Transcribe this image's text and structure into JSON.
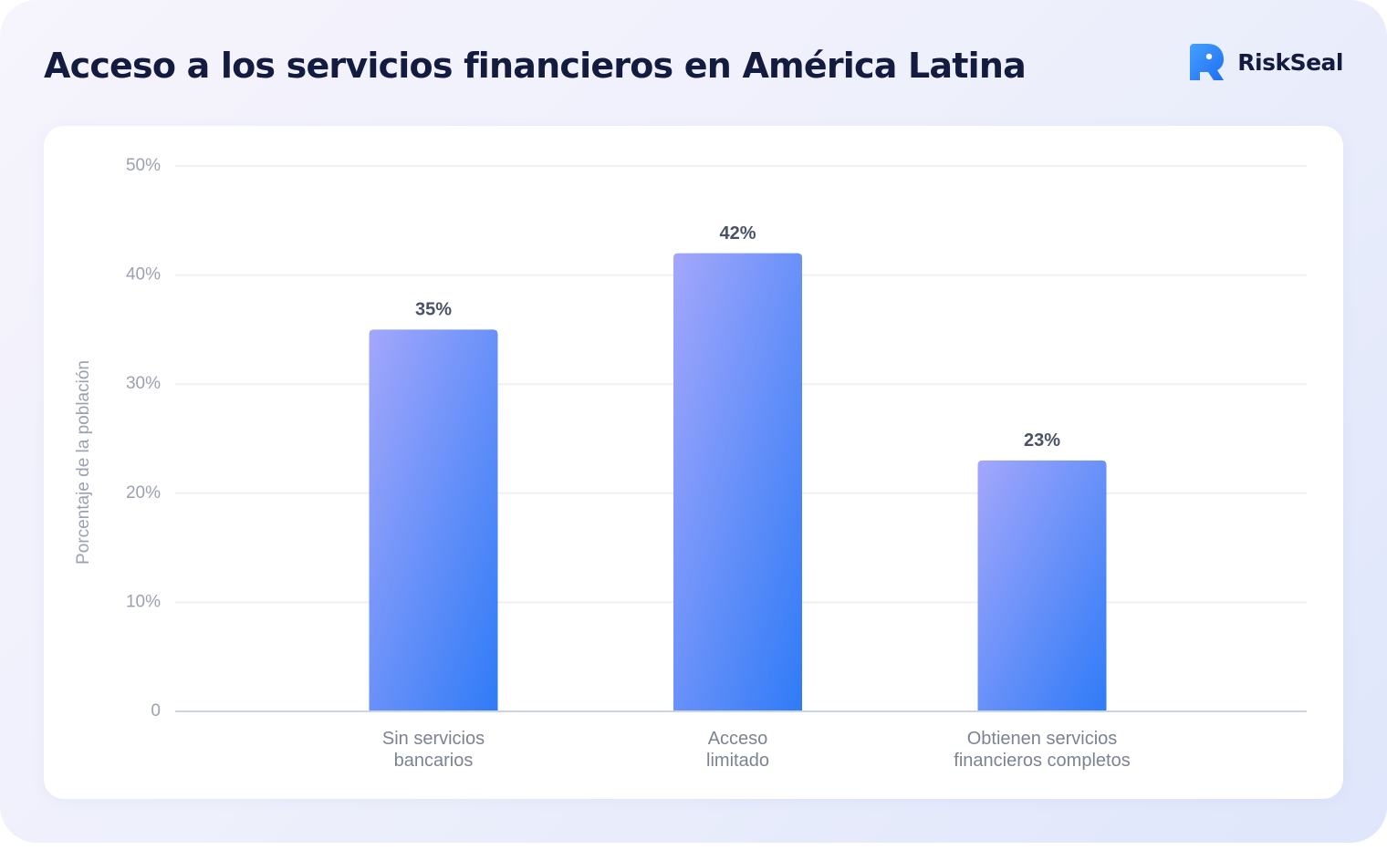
{
  "header": {
    "title": "Acceso a los servicios financieros en América Latina",
    "brand_name": "RiskSeal",
    "brand_icon": "riskseal-logo-icon",
    "brand_color": "#2f7cf6"
  },
  "colors": {
    "bar_gradient_start": "#a3a7fb",
    "bar_gradient_end": "#2f7bf7",
    "gridline": "#eef0f6",
    "baseline": "#c9d4ea",
    "title": "#131b3f"
  },
  "chart_data": {
    "type": "bar",
    "title": "",
    "xlabel": "",
    "ylabel": "Porcentaje de la población",
    "categories": [
      [
        "Sin servicios",
        "bancarios"
      ],
      [
        "Acceso",
        "limitado"
      ],
      [
        "Obtienen servicios",
        "financieros completos"
      ]
    ],
    "values": [
      35,
      42,
      23
    ],
    "value_labels": [
      "35%",
      "42%",
      "23%"
    ],
    "ylim": [
      0,
      50
    ],
    "yticks": [
      0,
      10,
      20,
      30,
      40,
      50
    ],
    "ytick_labels": [
      "0",
      "10%",
      "20%",
      "30%",
      "40%",
      "50%"
    ],
    "grid": true,
    "legend": "none"
  }
}
